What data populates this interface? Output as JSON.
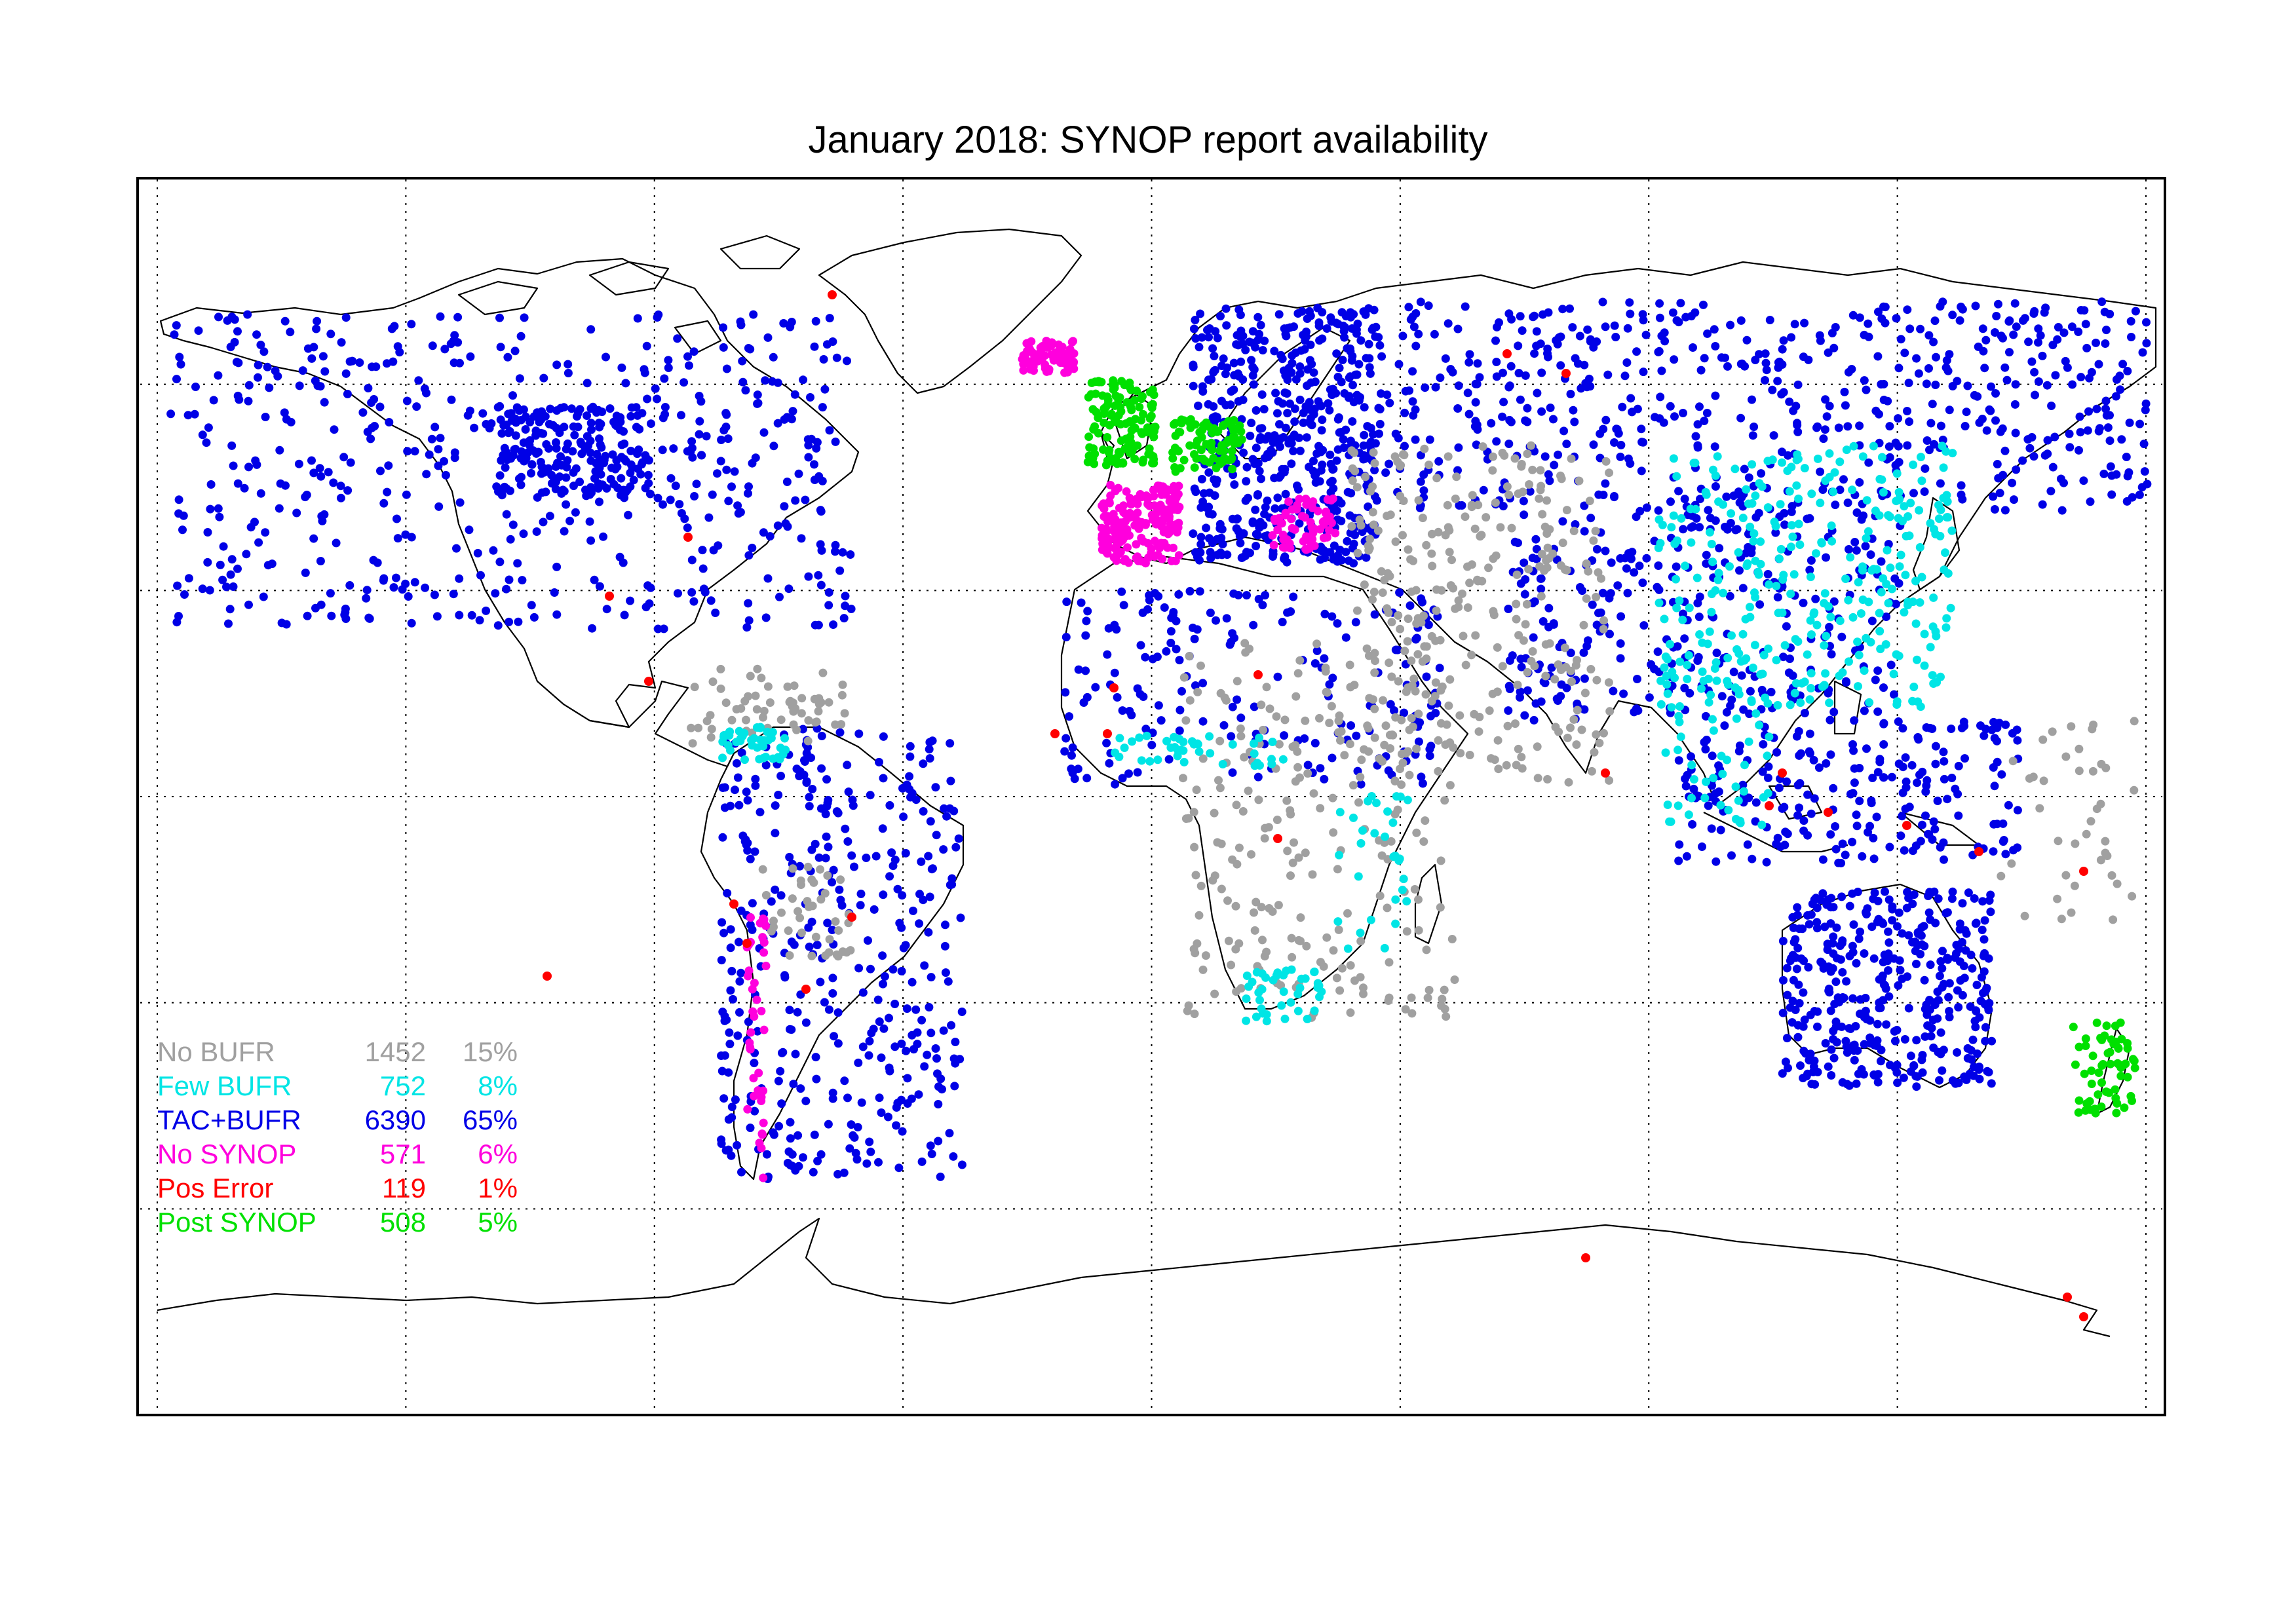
{
  "title": "January 2018: SYNOP report availability",
  "colors": {
    "no_bufr": "#a0a0a0",
    "few_bufr": "#00e5e5",
    "tac_bufr": "#0000e6",
    "no_synop": "#ff00dd",
    "pos_error": "#ff0000",
    "post_synop": "#00e000",
    "coast": "#000000",
    "grid": "#000000"
  },
  "legend": [
    {
      "label": "No BUFR",
      "count": "1452",
      "percent": "15%",
      "color": "#a0a0a0"
    },
    {
      "label": "Few BUFR",
      "count": "752",
      "percent": "8%",
      "color": "#00e5e5"
    },
    {
      "label": "TAC+BUFR",
      "count": "6390",
      "percent": "65%",
      "color": "#0000e6"
    },
    {
      "label": "No SYNOP",
      "count": "571",
      "percent": "6%",
      "color": "#ff00dd"
    },
    {
      "label": "Pos Error",
      "count": "119",
      "percent": "1%",
      "color": "#ff0000"
    },
    {
      "label": "Post SYNOP",
      "count": "508",
      "percent": "5%",
      "color": "#00e000"
    }
  ],
  "map": {
    "projection": "equirectangular",
    "lon_range": [
      -180,
      180
    ],
    "lat_range": [
      -90,
      90
    ],
    "grid_lons": [
      -135,
      -90,
      -45,
      0,
      45,
      90,
      135
    ],
    "grid_lats": [
      60,
      30,
      0,
      -30,
      -60
    ],
    "icon": "world-map"
  }
}
